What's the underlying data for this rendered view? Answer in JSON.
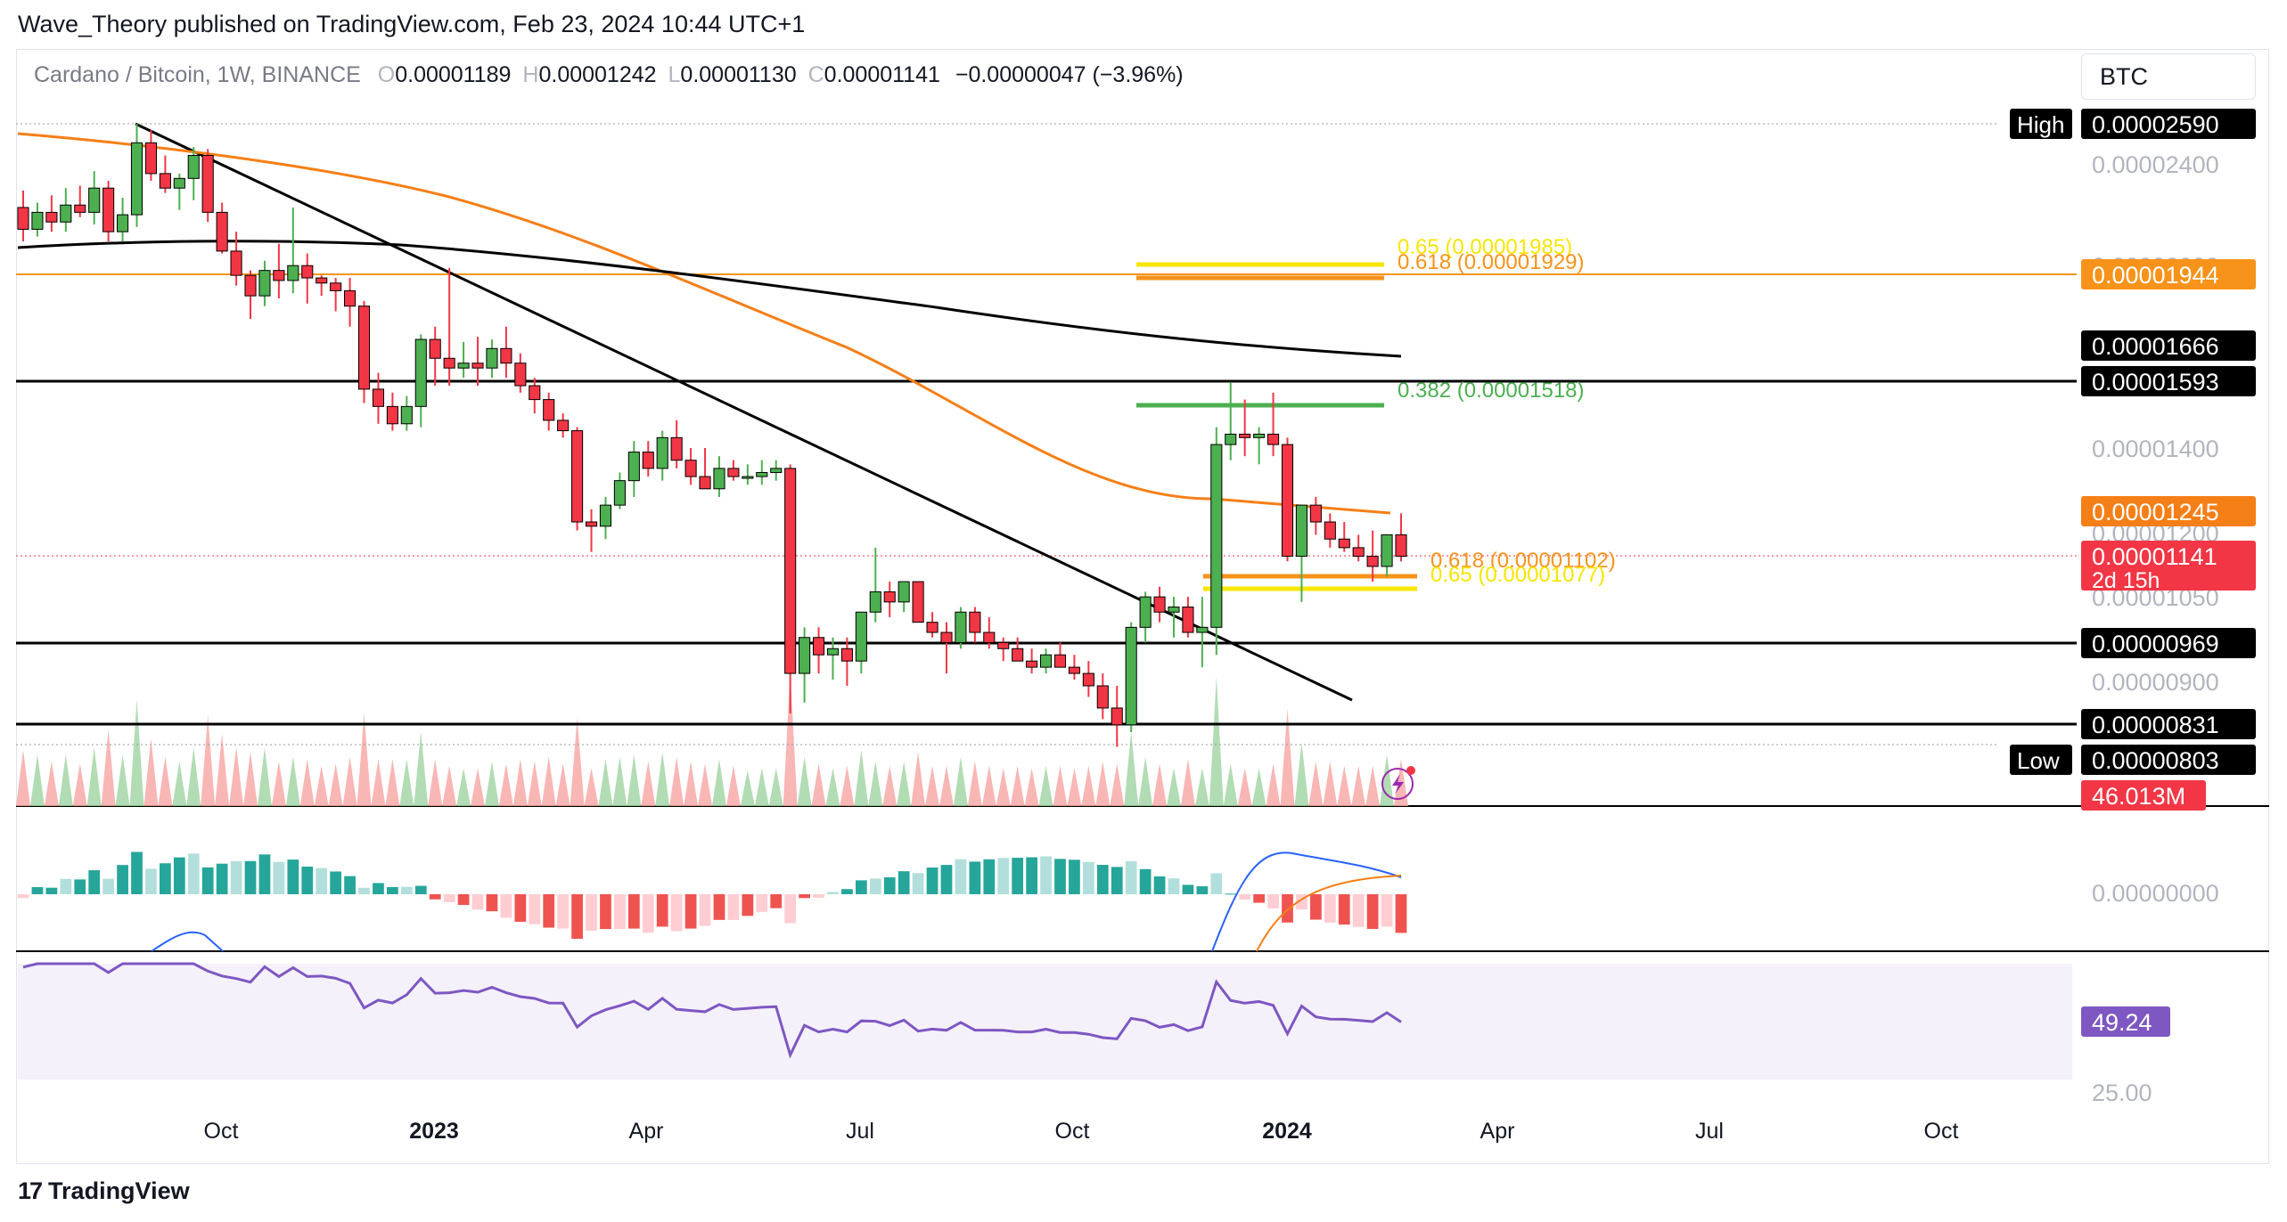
{
  "publisher": "Wave_Theory published on TradingView.com, Feb 23, 2024 10:44 UTC+1",
  "brand": "TradingView",
  "brand_logo": "17",
  "symbol": "Cardano / Bitcoin, 1W, BINANCE",
  "ohlc": {
    "open_label": "O",
    "open": "0.00001189",
    "high_label": "H",
    "high": "0.00001242",
    "low_label": "L",
    "low": "0.00001130",
    "close_label": "C",
    "close": "0.00001141",
    "change": "−0.00000047 (−3.96%)"
  },
  "currency": "BTC",
  "chart_data": {
    "type": "candlestick",
    "title": "Cardano / Bitcoin, 1W, BINANCE",
    "x_axis_ticks": [
      "Oct",
      "2023",
      "Apr",
      "Jul",
      "Oct",
      "2024",
      "Apr",
      "Jul",
      "Oct"
    ],
    "price_axis_ticks": [
      "0.00002400",
      "0.00002000",
      "0.00001400",
      "0.00001200",
      "0.00001050",
      "0.00000900"
    ],
    "price_labels": [
      {
        "text": "0.00002590",
        "tag": "High",
        "color": "#000000"
      },
      {
        "text": "0.00001944",
        "color": "#f7931a"
      },
      {
        "text": "0.00001666",
        "color": "#000000"
      },
      {
        "text": "0.00001593",
        "color": "#000000"
      },
      {
        "text": "0.00001245",
        "color": "#f57f17"
      },
      {
        "text": "0.00001141",
        "sub": "2d 15h",
        "color": "#f23645"
      },
      {
        "text": "0.00000969",
        "color": "#000000"
      },
      {
        "text": "0.00000831",
        "color": "#000000"
      },
      {
        "text": "0.00000803",
        "tag": "Low",
        "color": "#000000"
      },
      {
        "text": "46.013M",
        "color": "#f23645"
      }
    ],
    "fib_levels": [
      {
        "label": "0.65 (0.00001985)",
        "color": "#f7e600"
      },
      {
        "label": "0.618 (0.00001929)",
        "color": "#f7931a"
      },
      {
        "label": "0.382 (0.00001518)",
        "color": "#4caf50"
      },
      {
        "label": "0.618 (0.00001102)",
        "color": "#f7931a"
      },
      {
        "label": "0.65 (0.00001077)",
        "color": "#f7e600"
      }
    ],
    "horizontal_levels": [
      1.944e-05,
      1.593e-05,
      9.69e-06,
      8.31e-06
    ],
    "last_price": 1.141e-05,
    "candles": [
      [
        2.22,
        2.29,
        2.08,
        2.13
      ],
      [
        2.13,
        2.24,
        2.1,
        2.2
      ],
      [
        2.2,
        2.27,
        2.12,
        2.16
      ],
      [
        2.16,
        2.3,
        2.12,
        2.23
      ],
      [
        2.23,
        2.31,
        2.18,
        2.2
      ],
      [
        2.2,
        2.37,
        2.15,
        2.3
      ],
      [
        2.3,
        2.33,
        2.08,
        2.12
      ],
      [
        2.12,
        2.26,
        2.08,
        2.19
      ],
      [
        2.19,
        2.59,
        2.14,
        2.5
      ],
      [
        2.5,
        2.56,
        2.33,
        2.36
      ],
      [
        2.36,
        2.44,
        2.28,
        2.3
      ],
      [
        2.3,
        2.36,
        2.21,
        2.34
      ],
      [
        2.34,
        2.48,
        2.25,
        2.44
      ],
      [
        2.44,
        2.47,
        2.16,
        2.2
      ],
      [
        2.2,
        2.24,
        2.03,
        2.04
      ],
      [
        2.04,
        2.12,
        1.9,
        1.94
      ],
      [
        1.94,
        1.96,
        1.77,
        1.86
      ],
      [
        1.86,
        2.0,
        1.82,
        1.96
      ],
      [
        1.96,
        2.07,
        1.85,
        1.92
      ],
      [
        1.92,
        2.22,
        1.87,
        1.98
      ],
      [
        1.98,
        2.03,
        1.83,
        1.93
      ],
      [
        1.93,
        1.94,
        1.86,
        1.91
      ],
      [
        1.91,
        1.93,
        1.8,
        1.88
      ],
      [
        1.88,
        1.93,
        1.74,
        1.82
      ],
      [
        1.82,
        1.84,
        1.53,
        1.57
      ],
      [
        1.57,
        1.61,
        1.47,
        1.52
      ],
      [
        1.52,
        1.56,
        1.45,
        1.47
      ],
      [
        1.47,
        1.55,
        1.45,
        1.52
      ],
      [
        1.52,
        1.71,
        1.46,
        1.69
      ],
      [
        1.69,
        1.74,
        1.58,
        1.64
      ],
      [
        1.64,
        1.97,
        1.58,
        1.62
      ],
      [
        1.62,
        1.68,
        1.6,
        1.63
      ],
      [
        1.63,
        1.7,
        1.58,
        1.62
      ],
      [
        1.62,
        1.69,
        1.6,
        1.66
      ],
      [
        1.66,
        1.74,
        1.6,
        1.63
      ],
      [
        1.63,
        1.65,
        1.56,
        1.58
      ],
      [
        1.58,
        1.6,
        1.5,
        1.54
      ],
      [
        1.54,
        1.56,
        1.45,
        1.48
      ],
      [
        1.48,
        1.5,
        1.43,
        1.45
      ],
      [
        1.45,
        1.46,
        1.2,
        1.22
      ],
      [
        1.22,
        1.25,
        1.15,
        1.21
      ],
      [
        1.21,
        1.28,
        1.18,
        1.26
      ],
      [
        1.26,
        1.34,
        1.25,
        1.32
      ],
      [
        1.32,
        1.42,
        1.28,
        1.39
      ],
      [
        1.39,
        1.42,
        1.33,
        1.35
      ],
      [
        1.35,
        1.45,
        1.32,
        1.43
      ],
      [
        1.43,
        1.48,
        1.35,
        1.37
      ],
      [
        1.37,
        1.4,
        1.31,
        1.33
      ],
      [
        1.33,
        1.4,
        1.3,
        1.3
      ],
      [
        1.3,
        1.38,
        1.28,
        1.35
      ],
      [
        1.35,
        1.37,
        1.32,
        1.33
      ],
      [
        1.33,
        1.36,
        1.31,
        1.33
      ],
      [
        1.33,
        1.37,
        1.31,
        1.34
      ],
      [
        1.34,
        1.37,
        1.32,
        1.35
      ],
      [
        1.35,
        1.36,
        0.85,
        0.92
      ],
      [
        0.92,
        1.0,
        0.87,
        0.98
      ],
      [
        0.98,
        1.0,
        0.92,
        0.95
      ],
      [
        0.95,
        0.98,
        0.91,
        0.96
      ],
      [
        0.96,
        0.98,
        0.9,
        0.94
      ],
      [
        0.94,
        1.03,
        0.92,
        1.03
      ],
      [
        1.03,
        1.16,
        1.01,
        1.07
      ],
      [
        1.07,
        1.09,
        1.02,
        1.05
      ],
      [
        1.05,
        1.09,
        1.03,
        1.09
      ],
      [
        1.09,
        1.09,
        1.01,
        1.01
      ],
      [
        1.01,
        1.03,
        0.98,
        0.99
      ],
      [
        0.99,
        1.01,
        0.92,
        0.97
      ],
      [
        0.97,
        1.04,
        0.96,
        1.03
      ],
      [
        1.03,
        1.04,
        0.97,
        0.99
      ],
      [
        0.99,
        1.02,
        0.96,
        0.97
      ],
      [
        0.97,
        0.98,
        0.94,
        0.96
      ],
      [
        0.96,
        0.98,
        0.94,
        0.94
      ],
      [
        0.94,
        0.96,
        0.92,
        0.93
      ],
      [
        0.93,
        0.96,
        0.92,
        0.95
      ],
      [
        0.95,
        0.97,
        0.93,
        0.93
      ],
      [
        0.93,
        0.95,
        0.91,
        0.92
      ],
      [
        0.92,
        0.94,
        0.88,
        0.9
      ],
      [
        0.9,
        0.92,
        0.84,
        0.86
      ],
      [
        0.86,
        0.9,
        0.8,
        0.83
      ],
      [
        0.83,
        1.01,
        0.82,
        1.0
      ],
      [
        1.0,
        1.07,
        0.97,
        1.06
      ],
      [
        1.06,
        1.08,
        1.01,
        1.03
      ],
      [
        1.03,
        1.06,
        0.98,
        1.04
      ],
      [
        1.04,
        1.06,
        0.98,
        0.99
      ],
      [
        0.99,
        1.06,
        0.93,
        1.0
      ],
      [
        1.0,
        1.46,
        0.95,
        1.41
      ],
      [
        1.41,
        1.59,
        1.37,
        1.44
      ],
      [
        1.44,
        1.54,
        1.38,
        1.43
      ],
      [
        1.43,
        1.46,
        1.36,
        1.44
      ],
      [
        1.44,
        1.56,
        1.38,
        1.41
      ],
      [
        1.41,
        1.43,
        1.13,
        1.14
      ],
      [
        1.14,
        1.26,
        1.05,
        1.26
      ],
      [
        1.26,
        1.28,
        1.19,
        1.22
      ],
      [
        1.22,
        1.24,
        1.16,
        1.18
      ],
      [
        1.18,
        1.22,
        1.15,
        1.16
      ],
      [
        1.16,
        1.19,
        1.13,
        1.14
      ],
      [
        1.14,
        1.2,
        1.09,
        1.12
      ],
      [
        1.12,
        1.19,
        1.1,
        1.19
      ],
      [
        1.19,
        1.24,
        1.13,
        1.14
      ]
    ],
    "indicators": [
      "EMA 50 (orange)",
      "EMA 200 (black)",
      "Volume",
      "MACD",
      "RSI"
    ],
    "rsi_value": "49.24",
    "rsi_tick": "25.00",
    "macd_zero_tick": "0.00000000"
  }
}
